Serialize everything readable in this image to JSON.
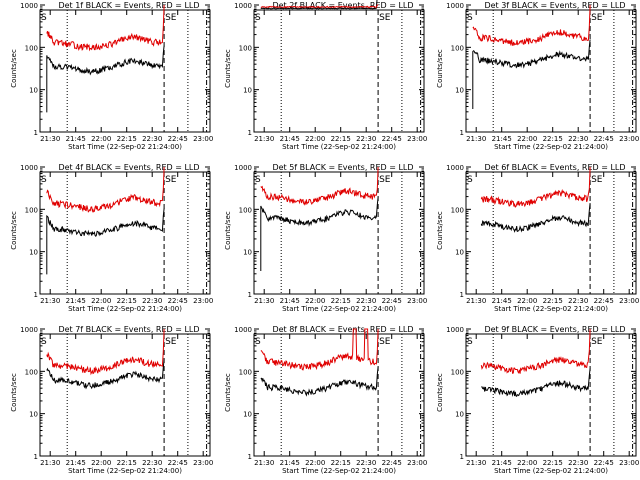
{
  "panels": [
    {
      "title": "Det 1f BLACK = Events, RED = LLD",
      "start": 0.0,
      "drop": 7,
      "red_base": 130,
      "red_offset": 0,
      "black_scale": 0.28
    },
    {
      "title": "Det 2f BLACK = Events, RED = LLD",
      "start": 0.0,
      "drop": 0,
      "red_base": 900,
      "red_offset": 0,
      "black_scale": 0.92,
      "flat": true
    },
    {
      "title": "Det 3f BLACK = Events, RED = LLD",
      "start": 0.0,
      "drop": 10,
      "red_base": 170,
      "red_offset": 0,
      "black_scale": 0.3
    },
    {
      "title": "Det 4f BLACK = Events, RED = LLD",
      "start": 0.0,
      "drop": 7,
      "red_base": 140,
      "red_offset": 0,
      "black_scale": 0.25
    },
    {
      "title": "Det 5f BLACK = Events, RED = LLD",
      "start": 0.0,
      "drop": 10,
      "red_base": 200,
      "red_offset": 0,
      "black_scale": 0.32
    },
    {
      "title": "Det 6f BLACK = Events, RED = LLD",
      "start": 0.0,
      "drop": 0,
      "red_base": 180,
      "red_offset": 0,
      "black_scale": 0.26,
      "late_start": true
    },
    {
      "title": "Det 7f BLACK = Events, RED = LLD",
      "start": 0.0,
      "drop": 0,
      "red_base": 140,
      "red_offset": 0,
      "black_scale": 0.45
    },
    {
      "title": "Det 8f BLACK = Events, RED = LLD",
      "start": 0.0,
      "drop": 0,
      "red_base": 170,
      "red_offset": 0,
      "black_scale": 0.25,
      "spike": true
    },
    {
      "title": "Det 9f BLACK = Events, RED = LLD",
      "start": 0.0,
      "drop": 0,
      "red_base": 140,
      "red_offset": 0,
      "black_scale": 0.28,
      "late_start": true
    }
  ],
  "chart_data": {
    "type": "line",
    "xlabel": "Start Time (22-Sep-02 21:24:00)",
    "ylabel": "Counts/sec",
    "x_tick_labels": [
      "21:30",
      "21:45",
      "22:00",
      "22:15",
      "22:30",
      "22:45",
      "23:00"
    ],
    "x_tick_minutes": [
      6,
      21,
      36,
      51,
      66,
      81,
      96
    ],
    "xlim_minutes": [
      0,
      100
    ],
    "y_scale": "log",
    "ylim": [
      1,
      1000
    ],
    "y_tick_labels": [
      "1",
      "10",
      "100",
      "1000"
    ],
    "series": [
      {
        "name": "Events",
        "color": "#000000"
      },
      {
        "name": "LLD",
        "color": "#e00000"
      }
    ],
    "vertical_markers": {
      "left_label": "S",
      "right_label": "SE",
      "dotted_minutes": [
        16,
        87
      ],
      "dashed_minutes": [
        73
      ],
      "dashdot_minutes": [
        98
      ]
    }
  }
}
